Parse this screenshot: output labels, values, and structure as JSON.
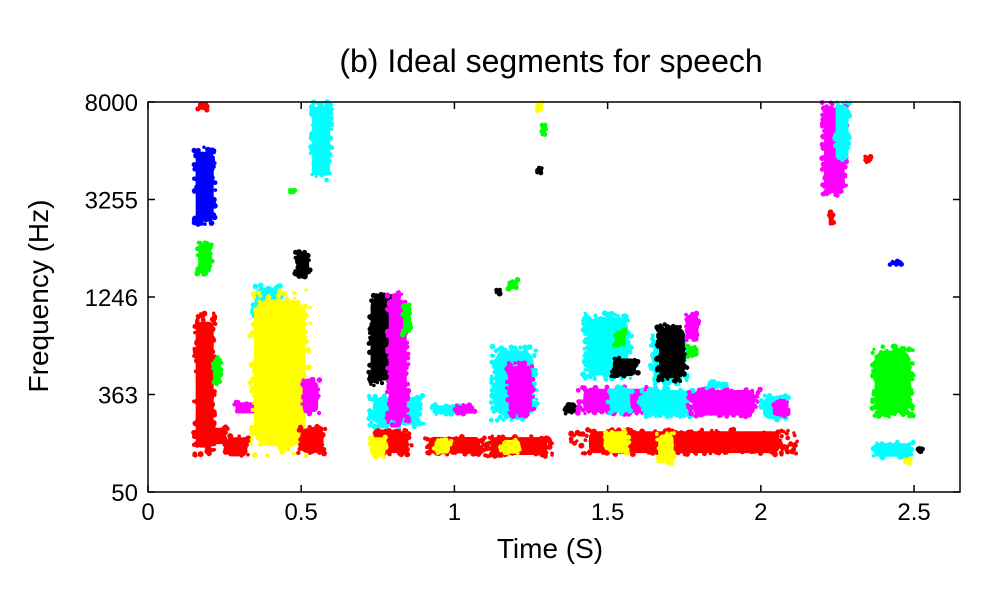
{
  "chart_data": {
    "type": "scatter",
    "title": "(b) Ideal segments for speech",
    "xlabel": "Time (S)",
    "ylabel": "Frequency (Hz)",
    "xlim": [
      0,
      2.65
    ],
    "y_scale": "erb-like (non-linear), ticks evenly spaced",
    "x_ticks": [
      {
        "value": 0,
        "label": "0"
      },
      {
        "value": 0.5,
        "label": "0.5"
      },
      {
        "value": 1,
        "label": "1"
      },
      {
        "value": 1.5,
        "label": "1.5"
      },
      {
        "value": 2,
        "label": "2"
      },
      {
        "value": 2.5,
        "label": "2.5"
      }
    ],
    "y_ticks": [
      {
        "value": 50,
        "label": "50"
      },
      {
        "value": 363,
        "label": "363"
      },
      {
        "value": 1246,
        "label": "1246"
      },
      {
        "value": 3255,
        "label": "3255"
      },
      {
        "value": 8000,
        "label": "8000"
      }
    ],
    "grid": false,
    "legend": "none",
    "colors": {
      "red": "#ff0000",
      "yellow": "#ffff00",
      "magenta": "#ff00ff",
      "cyan": "#00ffff",
      "black": "#000000",
      "blue": "#0000ff",
      "green": "#00ff00"
    },
    "segments": [
      {
        "color": "red",
        "x": [
          0.15,
          0.22
        ],
        "y": [
          165,
          1100
        ]
      },
      {
        "color": "blue",
        "x": [
          0.15,
          0.22
        ],
        "y": [
          2700,
          5800
        ]
      },
      {
        "color": "green",
        "x": [
          0.16,
          0.21
        ],
        "y": [
          1700,
          2400
        ]
      },
      {
        "color": "green",
        "x": [
          0.21,
          0.24
        ],
        "y": [
          450,
          700
        ]
      },
      {
        "color": "red",
        "x": [
          0.16,
          0.2
        ],
        "y": [
          7600,
          8000
        ]
      },
      {
        "color": "red",
        "x": [
          0.25,
          0.33
        ],
        "y": [
          160,
          230
        ]
      },
      {
        "color": "red",
        "x": [
          0.2,
          0.26
        ],
        "y": [
          200,
          260
        ]
      },
      {
        "color": "magenta",
        "x": [
          0.28,
          0.35
        ],
        "y": [
          300,
          340
        ]
      },
      {
        "color": "cyan",
        "x": [
          0.34,
          0.44
        ],
        "y": [
          900,
          1500
        ]
      },
      {
        "color": "yellow",
        "x": [
          0.33,
          0.53
        ],
        "y": [
          165,
          1400
        ]
      },
      {
        "color": "red",
        "x": [
          0.49,
          0.58
        ],
        "y": [
          170,
          260
        ]
      },
      {
        "color": "magenta",
        "x": [
          0.5,
          0.56
        ],
        "y": [
          300,
          500
        ]
      },
      {
        "color": "black",
        "x": [
          0.48,
          0.53
        ],
        "y": [
          1650,
          2200
        ]
      },
      {
        "color": "cyan",
        "x": [
          0.53,
          0.6
        ],
        "y": [
          4200,
          8000
        ]
      },
      {
        "color": "green",
        "x": [
          0.46,
          0.48
        ],
        "y": [
          3600,
          3800
        ]
      },
      {
        "color": "red",
        "x": [
          0.73,
          0.86
        ],
        "y": [
          170,
          250
        ]
      },
      {
        "color": "yellow",
        "x": [
          0.72,
          0.78
        ],
        "y": [
          160,
          230
        ]
      },
      {
        "color": "cyan",
        "x": [
          0.72,
          0.9
        ],
        "y": [
          260,
          360
        ]
      },
      {
        "color": "black",
        "x": [
          0.72,
          0.8
        ],
        "y": [
          440,
          1300
        ]
      },
      {
        "color": "magenta",
        "x": [
          0.78,
          0.85
        ],
        "y": [
          260,
          1350
        ]
      },
      {
        "color": "green",
        "x": [
          0.83,
          0.86
        ],
        "y": [
          900,
          1200
        ]
      },
      {
        "color": "red",
        "x": [
          0.9,
          1.1
        ],
        "y": [
          170,
          230
        ]
      },
      {
        "color": "yellow",
        "x": [
          0.93,
          0.99
        ],
        "y": [
          170,
          220
        ]
      },
      {
        "color": "cyan",
        "x": [
          0.92,
          1.02
        ],
        "y": [
          300,
          330
        ]
      },
      {
        "color": "magenta",
        "x": [
          1.0,
          1.07
        ],
        "y": [
          300,
          330
        ]
      },
      {
        "color": "cyan",
        "x": [
          1.12,
          1.27
        ],
        "y": [
          280,
          800
        ]
      },
      {
        "color": "magenta",
        "x": [
          1.17,
          1.26
        ],
        "y": [
          290,
          650
        ]
      },
      {
        "color": "red",
        "x": [
          1.1,
          1.32
        ],
        "y": [
          165,
          230
        ]
      },
      {
        "color": "yellow",
        "x": [
          1.15,
          1.22
        ],
        "y": [
          170,
          220
        ]
      },
      {
        "color": "black",
        "x": [
          1.13,
          1.15
        ],
        "y": [
          1300,
          1400
        ]
      },
      {
        "color": "green",
        "x": [
          1.17,
          1.21
        ],
        "y": [
          1400,
          1600
        ]
      },
      {
        "color": "yellow",
        "x": [
          1.27,
          1.29
        ],
        "y": [
          7500,
          8000
        ]
      },
      {
        "color": "green",
        "x": [
          1.28,
          1.3
        ],
        "y": [
          6300,
          6900
        ]
      },
      {
        "color": "black",
        "x": [
          1.27,
          1.29
        ],
        "y": [
          4500,
          4800
        ]
      },
      {
        "color": "black",
        "x": [
          1.36,
          1.4
        ],
        "y": [
          300,
          340
        ]
      },
      {
        "color": "magenta",
        "x": [
          1.4,
          1.66
        ],
        "y": [
          300,
          430
        ]
      },
      {
        "color": "cyan",
        "x": [
          1.5,
          1.58
        ],
        "y": [
          300,
          430
        ]
      },
      {
        "color": "cyan",
        "x": [
          1.42,
          1.58
        ],
        "y": [
          500,
          1100
        ]
      },
      {
        "color": "black",
        "x": [
          1.51,
          1.6
        ],
        "y": [
          520,
          700
        ]
      },
      {
        "color": "green",
        "x": [
          1.52,
          1.56
        ],
        "y": [
          800,
          950
        ]
      },
      {
        "color": "red",
        "x": [
          1.38,
          2.12
        ],
        "y": [
          170,
          250
        ]
      },
      {
        "color": "yellow",
        "x": [
          1.49,
          1.57
        ],
        "y": [
          170,
          250
        ]
      },
      {
        "color": "yellow",
        "x": [
          1.66,
          1.72
        ],
        "y": [
          140,
          240
        ]
      },
      {
        "color": "cyan",
        "x": [
          1.6,
          1.78
        ],
        "y": [
          290,
          420
        ]
      },
      {
        "color": "magenta",
        "x": [
          1.76,
          2.0
        ],
        "y": [
          290,
          420
        ]
      },
      {
        "color": "cyan",
        "x": [
          1.64,
          1.76
        ],
        "y": [
          450,
          900
        ]
      },
      {
        "color": "black",
        "x": [
          1.66,
          1.76
        ],
        "y": [
          480,
          1000
        ]
      },
      {
        "color": "magenta",
        "x": [
          1.75,
          1.8
        ],
        "y": [
          850,
          1100
        ]
      },
      {
        "color": "green",
        "x": [
          1.76,
          1.8
        ],
        "y": [
          700,
          800
        ]
      },
      {
        "color": "cyan",
        "x": [
          1.82,
          1.9
        ],
        "y": [
          420,
          480
        ]
      },
      {
        "color": "cyan",
        "x": [
          2.0,
          2.09
        ],
        "y": [
          280,
          360
        ]
      },
      {
        "color": "magenta",
        "x": [
          2.04,
          2.09
        ],
        "y": [
          290,
          350
        ]
      },
      {
        "color": "magenta",
        "x": [
          2.2,
          2.28
        ],
        "y": [
          3400,
          8000
        ]
      },
      {
        "color": "cyan",
        "x": [
          2.24,
          2.29
        ],
        "y": [
          5000,
          8000
        ]
      },
      {
        "color": "red",
        "x": [
          2.22,
          2.24
        ],
        "y": [
          2700,
          3000
        ]
      },
      {
        "color": "red",
        "x": [
          2.34,
          2.36
        ],
        "y": [
          5000,
          5400
        ]
      },
      {
        "color": "blue",
        "x": [
          2.42,
          2.46
        ],
        "y": [
          1900,
          2000
        ]
      },
      {
        "color": "green",
        "x": [
          2.36,
          2.5
        ],
        "y": [
          290,
          800
        ]
      },
      {
        "color": "cyan",
        "x": [
          2.36,
          2.5
        ],
        "y": [
          160,
          210
        ]
      },
      {
        "color": "yellow",
        "x": [
          2.47,
          2.49
        ],
        "y": [
          140,
          160
        ]
      },
      {
        "color": "black",
        "x": [
          2.51,
          2.53
        ],
        "y": [
          180,
          190
        ]
      }
    ]
  }
}
